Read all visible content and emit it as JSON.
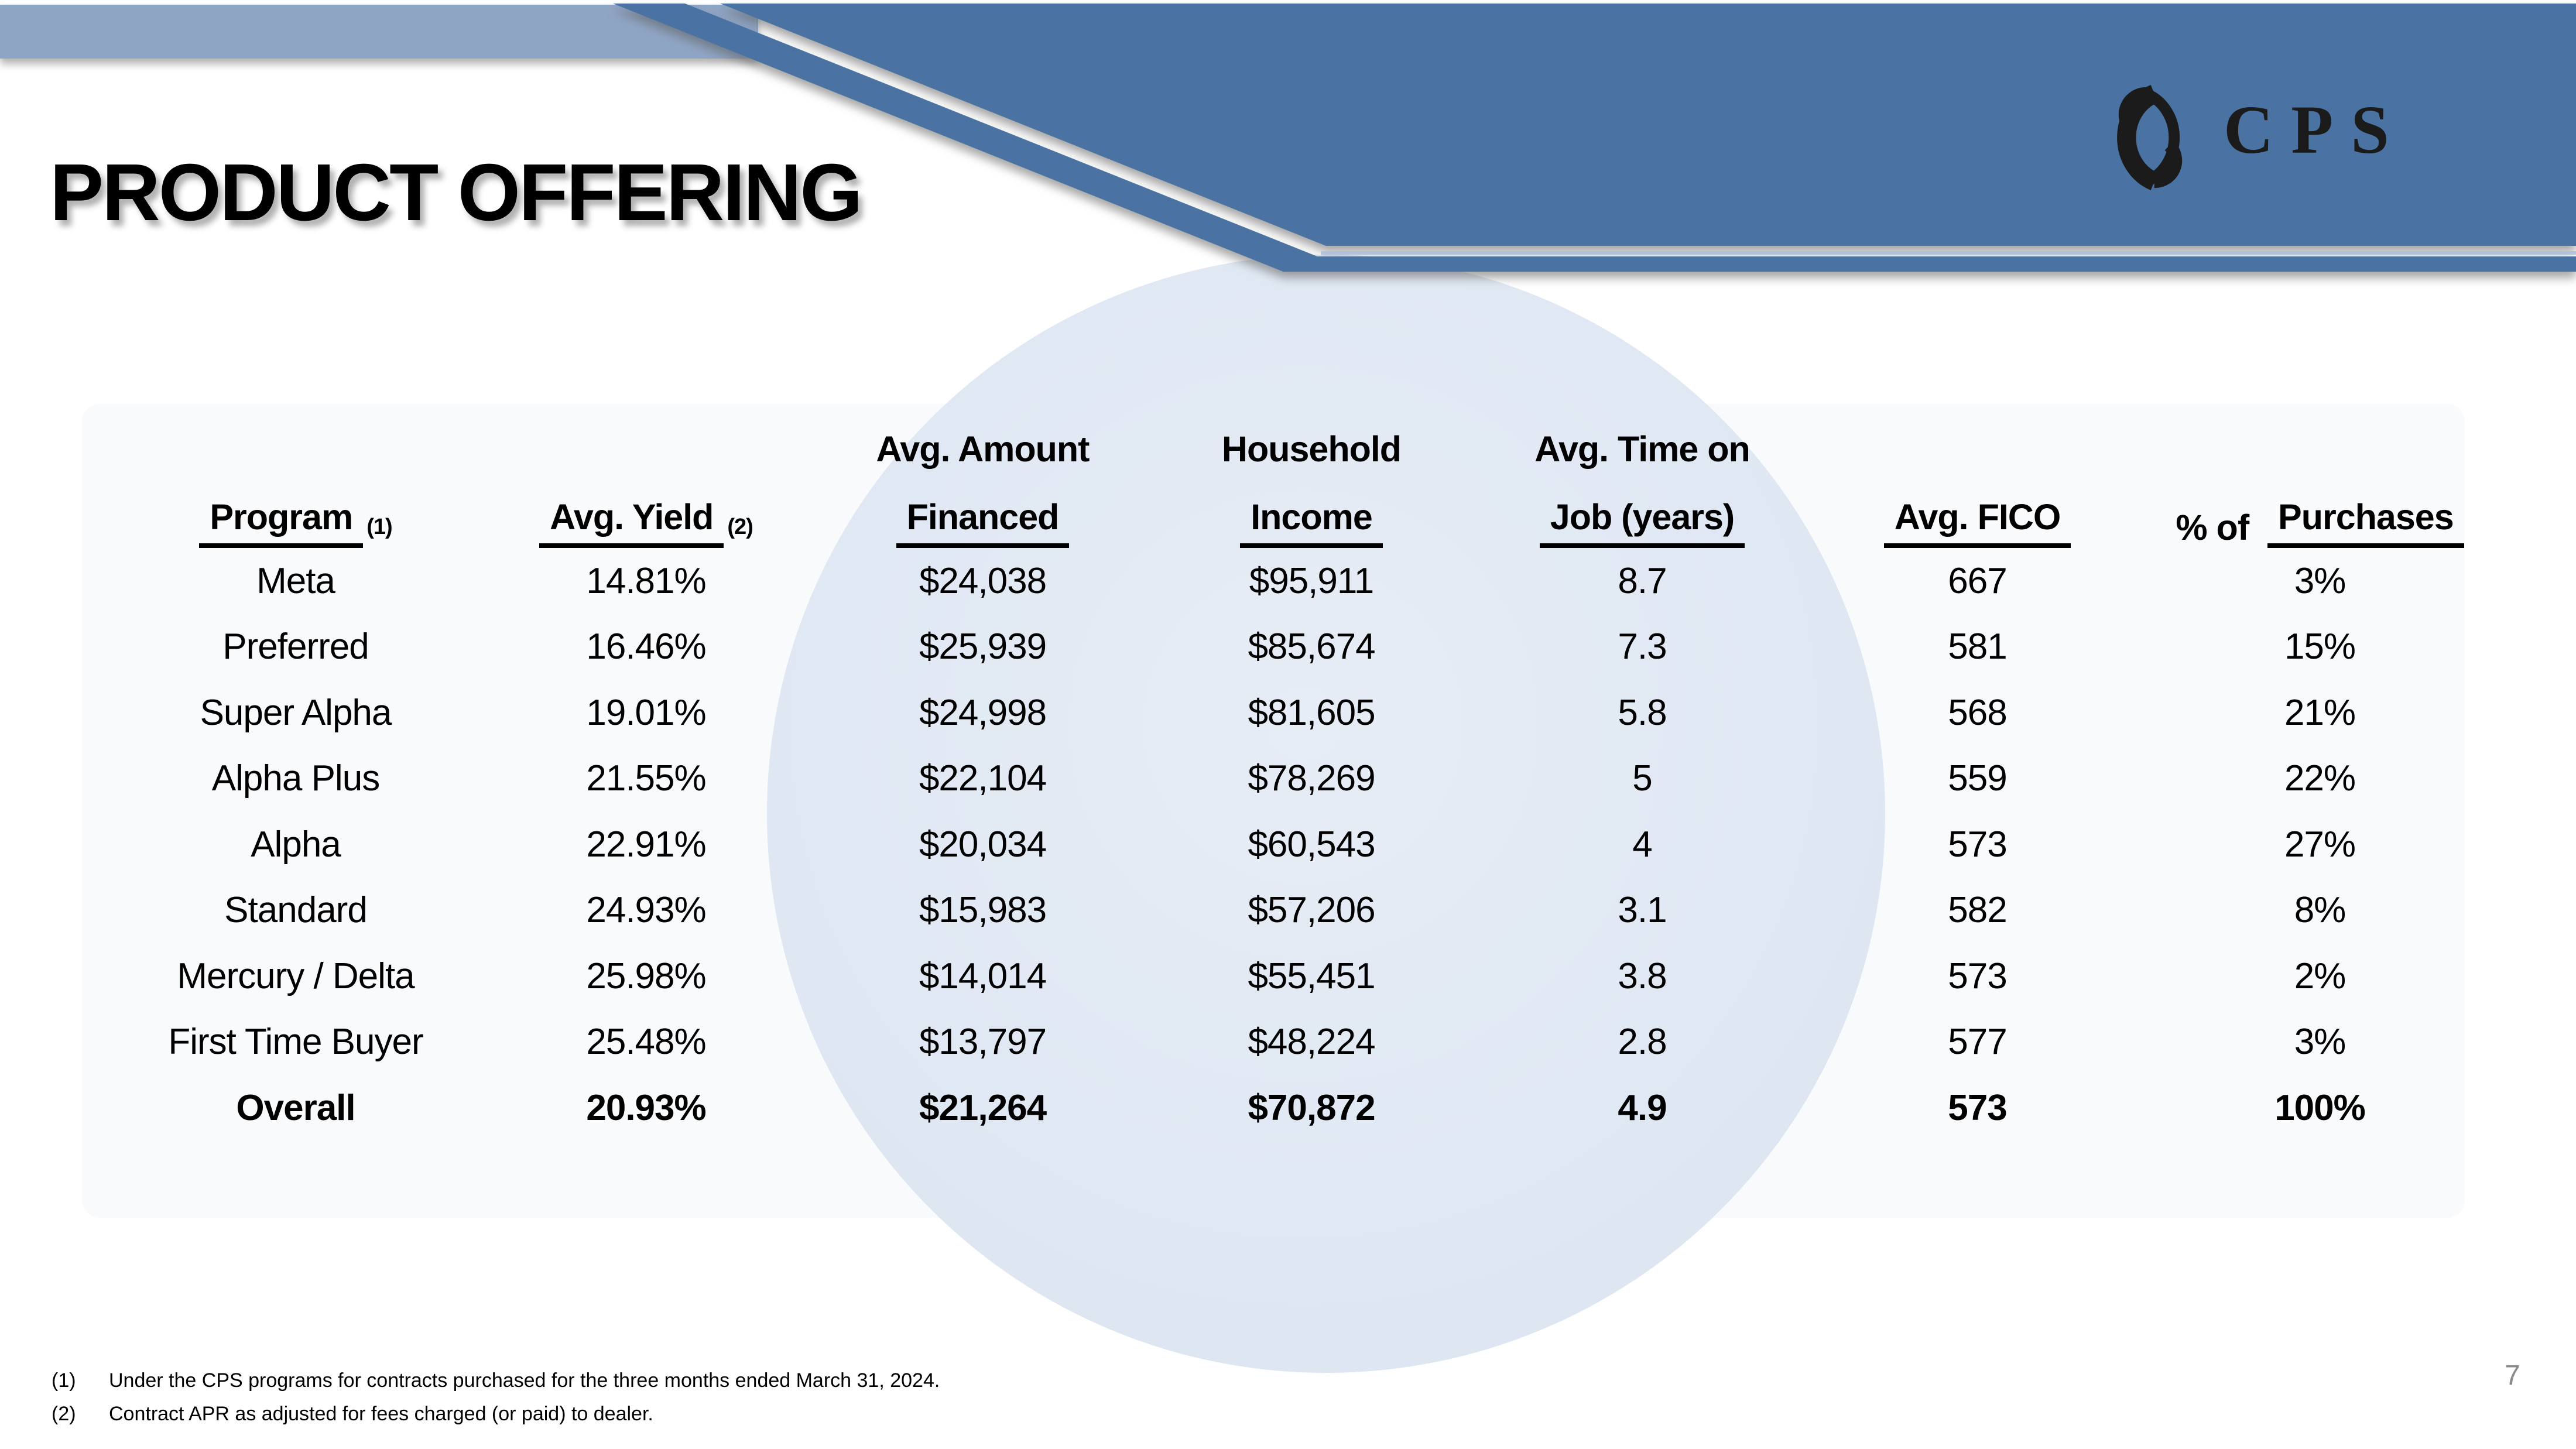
{
  "slide": {
    "title": "PRODUCT OFFERING",
    "page_number": "7"
  },
  "logo": {
    "text": "CPS"
  },
  "table": {
    "keys": [
      "program",
      "avg_yield",
      "amount_financed",
      "household_income",
      "time_on_job",
      "avg_fico",
      "pct_of_purchases"
    ],
    "columns": [
      {
        "top": "",
        "label": "Program",
        "sup": "(1)"
      },
      {
        "top": "",
        "label": "Avg. Yield",
        "sup": "(2)"
      },
      {
        "top": "Avg. Amount",
        "label": "Financed"
      },
      {
        "top": "Household",
        "label": "Income"
      },
      {
        "top": "Avg. Time on",
        "label": "Job (years)"
      },
      {
        "top": "",
        "label": "Avg. FICO"
      },
      {
        "top": "",
        "prefix": "% of ",
        "label": "Purchases"
      }
    ],
    "rows": [
      {
        "program": "Meta",
        "avg_yield": "14.81%",
        "amount_financed": "$24,038",
        "household_income": "$95,911",
        "time_on_job": "8.7",
        "avg_fico": "667",
        "pct_of_purchases": "3%",
        "bold": false
      },
      {
        "program": "Preferred",
        "avg_yield": "16.46%",
        "amount_financed": "$25,939",
        "household_income": "$85,674",
        "time_on_job": "7.3",
        "avg_fico": "581",
        "pct_of_purchases": "15%",
        "bold": false
      },
      {
        "program": "Super Alpha",
        "avg_yield": "19.01%",
        "amount_financed": "$24,998",
        "household_income": "$81,605",
        "time_on_job": "5.8",
        "avg_fico": "568",
        "pct_of_purchases": "21%",
        "bold": false
      },
      {
        "program": "Alpha Plus",
        "avg_yield": "21.55%",
        "amount_financed": "$22,104",
        "household_income": "$78,269",
        "time_on_job": "5",
        "avg_fico": "559",
        "pct_of_purchases": "22%",
        "bold": false
      },
      {
        "program": "Alpha",
        "avg_yield": "22.91%",
        "amount_financed": "$20,034",
        "household_income": "$60,543",
        "time_on_job": "4",
        "avg_fico": "573",
        "pct_of_purchases": "27%",
        "bold": false
      },
      {
        "program": "Standard",
        "avg_yield": "24.93%",
        "amount_financed": "$15,983",
        "household_income": "$57,206",
        "time_on_job": "3.1",
        "avg_fico": "582",
        "pct_of_purchases": "8%",
        "bold": false
      },
      {
        "program": "Mercury / Delta",
        "avg_yield": "25.98%",
        "amount_financed": "$14,014",
        "household_income": "$55,451",
        "time_on_job": "3.8",
        "avg_fico": "573",
        "pct_of_purchases": "2%",
        "bold": false
      },
      {
        "program": "First Time Buyer",
        "avg_yield": "25.48%",
        "amount_financed": "$13,797",
        "household_income": "$48,224",
        "time_on_job": "2.8",
        "avg_fico": "577",
        "pct_of_purchases": "3%",
        "bold": false
      },
      {
        "program": "Overall",
        "avg_yield": "20.93%",
        "amount_financed": "$21,264",
        "household_income": "$70,872",
        "time_on_job": "4.9",
        "avg_fico": "573",
        "pct_of_purchases": "100%",
        "bold": true
      }
    ]
  },
  "footnotes": [
    {
      "num": "(1)",
      "text": "Under the CPS programs for contracts purchased for the three months ended March 31, 2024."
    },
    {
      "num": "(2)",
      "text": "Contract APR as adjusted for fees charged (or paid) to dealer."
    }
  ],
  "colors": {
    "banner_dark": "#4A73A4",
    "banner_light": "#8FA5C4",
    "gap_highlight": "#A9BDD8",
    "circle_fill": "#E0E8F3",
    "page_number": "#8A8A8A",
    "text": "#000000"
  }
}
